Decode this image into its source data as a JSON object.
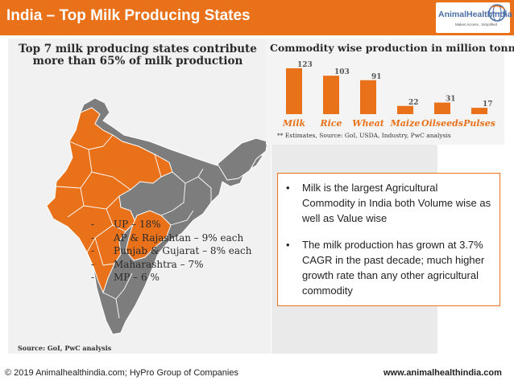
{
  "header": {
    "title": "India – Top Milk Producing States",
    "logo_text": "AnimalHealthIndia",
    "logo_tagline": "Makes Access...Simplified"
  },
  "map_panel": {
    "heading_line1": "Top 7 milk producing states contribute",
    "heading_line2": "more than 65% of milk production",
    "states": [
      "UP – 18%",
      "AP & Rajashtan – 9% each",
      "Punjab & Gujarat – 8% each",
      "Maharashtra – 7%",
      "MP – 6 %"
    ],
    "source": "Source: GoI,  PwC analysis"
  },
  "callout": {
    "bullets": [
      "Milk is the largest Agricultural Commodity in India both Volume wise as well as Value wise",
      "The milk production has grown at 3.7% CAGR in the past decade; much higher growth rate than any other agricultural commodity"
    ]
  },
  "footer": {
    "copyright": "© 2019 Animalhealthindia.com;  HyPro Group of Companies",
    "website": "www.animalhealthindia.com"
  },
  "colors": {
    "accent": "#e8711a",
    "map_fill": "#e8711a",
    "map_other": "#7d7d7d"
  },
  "chart_data": {
    "type": "bar",
    "title": "Commodity wise production in million tonnes**",
    "categories": [
      "Milk",
      "Rice",
      "Wheat",
      "Maize",
      "Oilseeds",
      "Pulses"
    ],
    "values": [
      123,
      103,
      91,
      22,
      31,
      17
    ],
    "xlabel": "",
    "ylabel": "",
    "ylim": [
      0,
      125
    ],
    "note": "** Estimates, Source: GoI, USDA, Industry, PwC analysis"
  }
}
